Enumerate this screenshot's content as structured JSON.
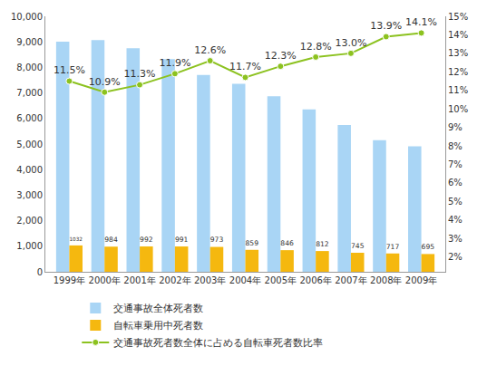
{
  "chart_data": {
    "type": "bar",
    "categories": [
      "1999年",
      "2000年",
      "2001年",
      "2002年",
      "2003年",
      "2004年",
      "2005年",
      "2006年",
      "2007年",
      "2008年",
      "2009年"
    ],
    "series": [
      {
        "name": "交通事故全体死者数",
        "type": "bar",
        "color": "#a9d5f5",
        "values": [
          9006,
          9066,
          8747,
          8326,
          7702,
          7358,
          6871,
          6352,
          5744,
          5155,
          4914
        ]
      },
      {
        "name": "自転車乗用中死者数",
        "type": "bar",
        "color": "#f5b80f",
        "data_labels": true,
        "values": [
          1032,
          984,
          992,
          991,
          973,
          859,
          846,
          812,
          745,
          717,
          695
        ]
      },
      {
        "name": "交通事故死者数全体に占める自転車死者数比率",
        "type": "line",
        "axis": "y2",
        "color": "#8cc21f",
        "marker": "circle",
        "data_labels": true,
        "values": [
          11.5,
          10.9,
          11.3,
          11.9,
          12.6,
          11.7,
          12.3,
          12.8,
          13.0,
          13.9,
          14.1
        ],
        "value_labels": [
          "11.5%",
          "10.9%",
          "11.3%",
          "11.9%",
          "12.6%",
          "11.7%",
          "12.3%",
          "12.8%",
          "13.0%",
          "13.9%",
          "14.1%"
        ]
      }
    ],
    "ylim": [
      0,
      10000
    ],
    "yticks": [
      0,
      {
        "value": 1000,
        "label": "1,000"
      },
      {
        "value": 2000,
        "label": "2,000"
      },
      {
        "value": 3000,
        "label": "3,000"
      },
      {
        "value": 4000,
        "label": "4,000"
      },
      {
        "value": 5000,
        "label": "5,000"
      },
      {
        "value": 6000,
        "label": "6,000"
      },
      {
        "value": 7000,
        "label": "7,000"
      },
      {
        "value": 8000,
        "label": "8,000"
      },
      {
        "value": 9000,
        "label": "9,000"
      },
      {
        "value": 10000,
        "label": "10,000"
      }
    ],
    "y2lim": [
      1.2,
      15
    ],
    "y2ticks": [
      {
        "value": 2,
        "label": "2%"
      },
      {
        "value": 3,
        "label": "3%"
      },
      {
        "value": 4,
        "label": "4%"
      },
      {
        "value": 5,
        "label": "5%"
      },
      {
        "value": 6,
        "label": "6%"
      },
      {
        "value": 7,
        "label": "7%"
      },
      {
        "value": 8,
        "label": "8%"
      },
      {
        "value": 9,
        "label": "9%"
      },
      {
        "value": 10,
        "label": "10%"
      },
      {
        "value": 11,
        "label": "11%"
      },
      {
        "value": 12,
        "label": "12%"
      },
      {
        "value": 13,
        "label": "13%"
      },
      {
        "value": 14,
        "label": "14%"
      },
      {
        "value": 15,
        "label": "15%"
      }
    ],
    "grid": false,
    "legend": "bottom"
  }
}
